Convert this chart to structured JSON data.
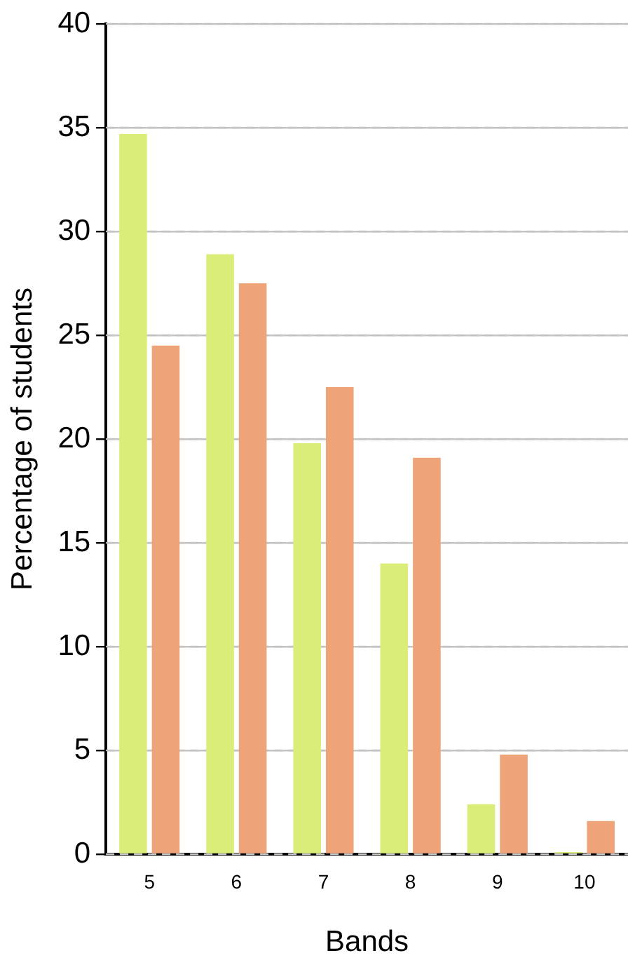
{
  "chart_data": {
    "type": "bar",
    "xlabel": "Bands",
    "ylabel": "Percentage of students",
    "categories": [
      "5",
      "6",
      "7",
      "8",
      "9",
      "10"
    ],
    "series": [
      {
        "color": "#d9ed78",
        "values": [
          34.7,
          28.9,
          19.8,
          14.0,
          2.4,
          0.1
        ]
      },
      {
        "color": "#eea379",
        "values": [
          24.5,
          27.5,
          22.5,
          19.1,
          4.8,
          1.6
        ]
      }
    ],
    "ylim": [
      0,
      40
    ],
    "yticks": [
      0,
      5,
      10,
      15,
      20,
      25,
      30,
      35,
      40
    ],
    "grid": "y",
    "legend": false
  }
}
